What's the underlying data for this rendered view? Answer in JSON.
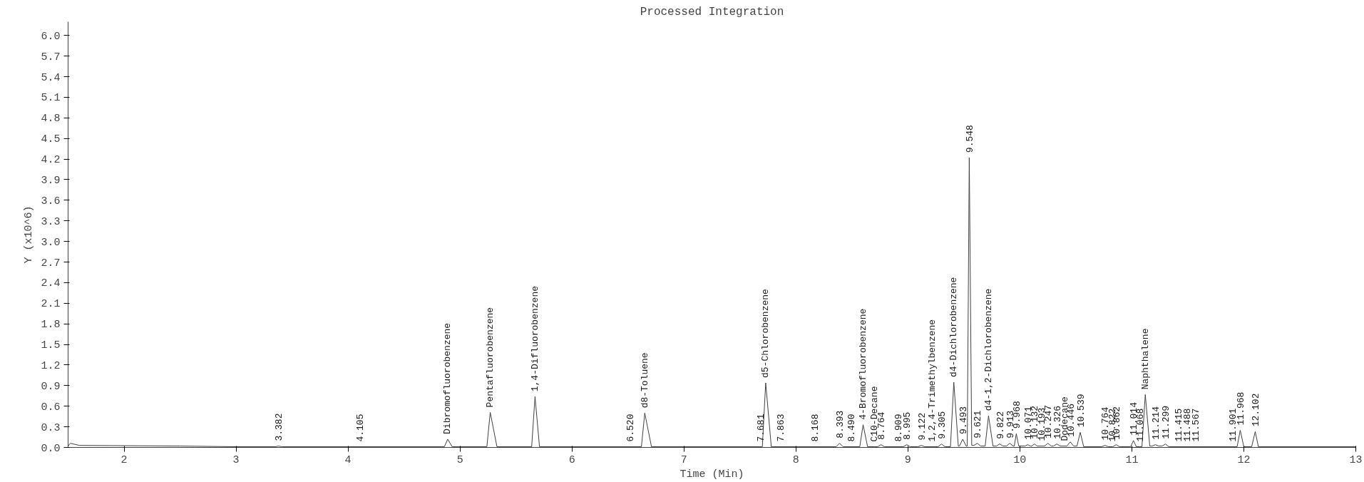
{
  "chart_data": {
    "type": "line",
    "title": "Processed Integration",
    "xlabel": "Time (Min)",
    "ylabel": "Y (x10^6)",
    "xlim": [
      1.5,
      13
    ],
    "xticks": [
      2,
      3,
      4,
      5,
      6,
      7,
      8,
      9,
      10,
      11,
      12,
      13
    ],
    "ylim": [
      0,
      6.2
    ],
    "yticks": [
      {
        "value": 0,
        "label": "0.0"
      },
      0.3,
      0.6,
      0.9,
      1.2,
      1.5,
      1.8,
      2.1,
      2.4,
      2.7,
      {
        "value": 3,
        "label": "3.0"
      },
      3.3,
      3.6,
      3.9,
      4.2,
      4.5,
      4.8,
      5.1,
      5.4,
      5.7,
      {
        "value": 6,
        "label": "6.0"
      }
    ],
    "grid": false,
    "marker": "none",
    "line_style": "solid",
    "series": [
      {
        "color": "#404040",
        "x": [
          1.5,
          1.52,
          1.6,
          2.5,
          3.0,
          3.35,
          3.38,
          3.41,
          4.86,
          4.89,
          4.93,
          5.24,
          5.27,
          5.33,
          5.64,
          5.67,
          5.71,
          6.62,
          6.65,
          6.71,
          7.7,
          7.73,
          7.78,
          8.36,
          8.39,
          8.42,
          8.57,
          8.6,
          8.64,
          8.73,
          8.76,
          8.79,
          8.96,
          8.99,
          9.02,
          9.09,
          9.12,
          9.15,
          9.27,
          9.3,
          9.33,
          9.38,
          9.41,
          9.45,
          9.46,
          9.49,
          9.52,
          9.53,
          9.548,
          9.57,
          9.59,
          9.62,
          9.65,
          9.69,
          9.72,
          9.76,
          9.79,
          9.82,
          9.85,
          9.88,
          9.91,
          9.94,
          9.95,
          9.968,
          9.99,
          10.045,
          10.07,
          10.095,
          10.105,
          10.13,
          10.155,
          10.22,
          10.25,
          10.28,
          10.3,
          10.33,
          10.36,
          10.42,
          10.45,
          10.48,
          10.51,
          10.539,
          10.57,
          10.73,
          10.76,
          10.79,
          10.83,
          10.86,
          10.89,
          10.99,
          11.014,
          11.04,
          11.09,
          11.12,
          11.16,
          11.18,
          11.21,
          11.24,
          11.27,
          11.3,
          11.33,
          11.94,
          11.968,
          12.0,
          12.07,
          12.102,
          12.13,
          13.0
        ],
        "values": [
          0.02,
          0.06,
          0.03,
          0.02,
          0.01,
          0.01,
          0.02,
          0.01,
          0.01,
          0.12,
          0.01,
          0.01,
          0.51,
          0.01,
          0.01,
          0.74,
          0.01,
          0.01,
          0.5,
          0.01,
          0.01,
          0.94,
          0.01,
          0.01,
          0.06,
          0.01,
          0.01,
          0.33,
          0.01,
          0.01,
          0.04,
          0.01,
          0.01,
          0.04,
          0.01,
          0.01,
          0.03,
          0.01,
          0.01,
          0.05,
          0.01,
          0.01,
          0.95,
          0.02,
          0.02,
          0.12,
          0.02,
          0.02,
          4.22,
          0.03,
          0.03,
          0.06,
          0.02,
          0.02,
          0.46,
          0.02,
          0.02,
          0.05,
          0.02,
          0.02,
          0.06,
          0.02,
          0.02,
          0.2,
          0.02,
          0.02,
          0.04,
          0.02,
          0.02,
          0.05,
          0.02,
          0.02,
          0.06,
          0.02,
          0.02,
          0.05,
          0.02,
          0.02,
          0.08,
          0.02,
          0.02,
          0.22,
          0.01,
          0.01,
          0.03,
          0.01,
          0.01,
          0.04,
          0.01,
          0.01,
          0.1,
          0.01,
          0.01,
          0.77,
          0.02,
          0.02,
          0.04,
          0.02,
          0.02,
          0.05,
          0.01,
          0.01,
          0.25,
          0.01,
          0.01,
          0.23,
          0.01,
          0.01
        ]
      }
    ],
    "annotations": [
      {
        "text": "3.382",
        "x": 3.38,
        "y": 0.02
      },
      {
        "text": "4.105",
        "x": 4.105,
        "y": 0.01
      },
      {
        "text": "Dibromofluorobenzene",
        "x": 4.89,
        "y": 0.12
      },
      {
        "text": "Pentafluorobenzene",
        "x": 5.27,
        "y": 0.51
      },
      {
        "text": "1,4-Difluorobenzene",
        "x": 5.67,
        "y": 0.74
      },
      {
        "text": "6.520",
        "x": 6.52,
        "y": 0.01
      },
      {
        "text": "d8-Toluene",
        "x": 6.65,
        "y": 0.5
      },
      {
        "text": "7.681",
        "x": 7.68,
        "y": 0.01
      },
      {
        "text": "d5-Chlorobenzene",
        "x": 7.73,
        "y": 0.94
      },
      {
        "text": "7.863",
        "x": 7.86,
        "y": 0.01
      },
      {
        "text": "8.168",
        "x": 8.17,
        "y": 0.01
      },
      {
        "text": "8.393",
        "x": 8.39,
        "y": 0.06
      },
      {
        "text": "8.490",
        "x": 8.49,
        "y": 0.01
      },
      {
        "text": "4-Bromofluorobenzene",
        "x": 8.6,
        "y": 0.33
      },
      {
        "text": "C10-Decane",
        "x": 8.7,
        "y": 0.01
      },
      {
        "text": "8.764",
        "x": 8.76,
        "y": 0.04
      },
      {
        "text": "8.909",
        "x": 8.91,
        "y": 0.01
      },
      {
        "text": "8.995",
        "x": 8.99,
        "y": 0.04
      },
      {
        "text": "9.122",
        "x": 9.12,
        "y": 0.03
      },
      {
        "text": "1,2,4-Trimethylbenzene",
        "x": 9.215,
        "y": 0.01
      },
      {
        "text": "9.305",
        "x": 9.3,
        "y": 0.05
      },
      {
        "text": "d4-Dichlorobenzene",
        "x": 9.41,
        "y": 0.95
      },
      {
        "text": "9.493",
        "x": 9.49,
        "y": 0.12
      },
      {
        "text": "9.548",
        "x": 9.548,
        "y": 4.22
      },
      {
        "text": "9.621",
        "x": 9.62,
        "y": 0.06
      },
      {
        "text": "d4-1,2-Dichlorobenzene",
        "x": 9.72,
        "y": 0.46
      },
      {
        "text": "9.822",
        "x": 9.82,
        "y": 0.05
      },
      {
        "text": "9.913",
        "x": 9.91,
        "y": 0.06
      },
      {
        "text": "9.968",
        "x": 9.968,
        "y": 0.2
      },
      {
        "text": "10.071",
        "x": 10.07,
        "y": 0.04
      },
      {
        "text": "10.132",
        "x": 10.13,
        "y": 0.05
      },
      {
        "text": "10.193",
        "x": 10.19,
        "y": 0.02
      },
      {
        "text": "10.247",
        "x": 10.25,
        "y": 0.06
      },
      {
        "text": "10.326",
        "x": 10.33,
        "y": 0.05
      },
      {
        "text": "Dodecane",
        "x": 10.4,
        "y": 0.02
      },
      {
        "text": "10.446",
        "x": 10.45,
        "y": 0.08
      },
      {
        "text": "10.539",
        "x": 10.539,
        "y": 0.22
      },
      {
        "text": "10.764",
        "x": 10.76,
        "y": 0.03
      },
      {
        "text": "10.822",
        "x": 10.82,
        "y": 0.01
      },
      {
        "text": "10.862",
        "x": 10.86,
        "y": 0.04
      },
      {
        "text": "11.014",
        "x": 11.014,
        "y": 0.1
      },
      {
        "text": "11.068",
        "x": 11.07,
        "y": 0.01
      },
      {
        "text": "Naphthalene",
        "x": 11.12,
        "y": 0.77
      },
      {
        "text": "11.214",
        "x": 11.21,
        "y": 0.04
      },
      {
        "text": "11.299",
        "x": 11.3,
        "y": 0.05
      },
      {
        "text": "11.415",
        "x": 11.415,
        "y": 0.01
      },
      {
        "text": "11.488",
        "x": 11.49,
        "y": 0.01
      },
      {
        "text": "11.567",
        "x": 11.57,
        "y": 0.01
      },
      {
        "text": "11.901",
        "x": 11.9,
        "y": 0.01
      },
      {
        "text": "11.968",
        "x": 11.968,
        "y": 0.25
      },
      {
        "text": "12.102",
        "x": 12.102,
        "y": 0.23
      }
    ]
  }
}
